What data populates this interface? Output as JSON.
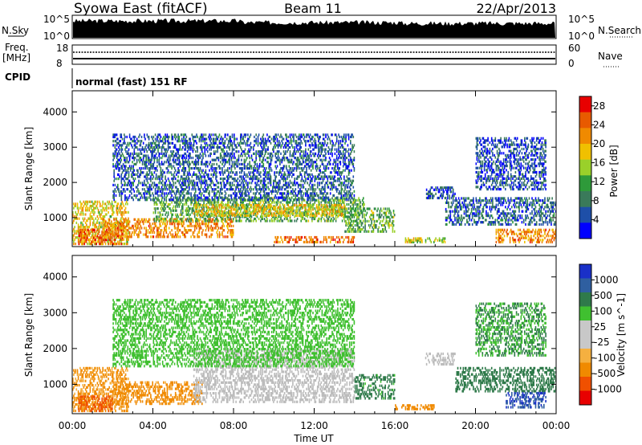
{
  "header": {
    "title": "Syowa East (fitACF)",
    "beam": "Beam 11",
    "date": "22/Apr/2013"
  },
  "top_panels": {
    "nsky_label": "N.Sky",
    "nsearch_label": "N.Search",
    "nsky_ticks": [
      "10^5",
      "10^0"
    ],
    "nsearch_ticks": [
      "10^5",
      "10^0"
    ],
    "freq_label": "Freq.",
    "freq_unit": "[MHz]",
    "freq_ticks": [
      "18",
      "8"
    ],
    "nave_label": "Nave",
    "nave_ticks": [
      "60",
      "0"
    ],
    "cpid_label": "CPID",
    "cpid_text": "normal (fast) 151 RF"
  },
  "colors": {
    "power_scale": [
      "#0000ff",
      "#1e4fa8",
      "#3a7a5a",
      "#2e9a3a",
      "#9ad02a",
      "#f0c000",
      "#f08a00",
      "#e85a00",
      "#e80000"
    ],
    "velocity_scale": [
      "#e80000",
      "#f05000",
      "#f08a00",
      "#f5b040",
      "#c8c8c8",
      "#c8c8c8",
      "#40c030",
      "#2f7a4a",
      "#2f5fa0",
      "#1a30c8"
    ],
    "ground_scatter": "#bcbcbc"
  },
  "chart_data": [
    {
      "type": "heatmap",
      "title": "",
      "xlabel": "",
      "ylabel": "Slant Range [km]",
      "x_range": [
        "00:00",
        "24:00"
      ],
      "y_range": [
        180,
        4600
      ],
      "x_ticks": [
        "00:00",
        "04:00",
        "08:00",
        "12:00",
        "16:00",
        "20:00",
        "00:00"
      ],
      "y_ticks": [
        1000,
        2000,
        3000,
        4000
      ],
      "colorbar": {
        "label": "Power [dB]",
        "range": [
          0,
          30
        ],
        "ticks": [
          4,
          8,
          12,
          16,
          20,
          24,
          28
        ]
      },
      "regions": [
        {
          "t0": 0.0,
          "t1": 2.8,
          "r0": 250,
          "r1": 1500,
          "level": 18
        },
        {
          "t0": 0.3,
          "t1": 2.5,
          "r0": 250,
          "r1": 700,
          "level": 24
        },
        {
          "t0": 1.5,
          "t1": 8.0,
          "r0": 450,
          "r1": 1000,
          "level": 22
        },
        {
          "t0": 4.0,
          "t1": 14.5,
          "r0": 900,
          "r1": 1600,
          "level": 12
        },
        {
          "t0": 6.0,
          "t1": 13.5,
          "r0": 1050,
          "r1": 1400,
          "level": 18
        },
        {
          "t0": 10.0,
          "t1": 14.0,
          "r0": 300,
          "r1": 500,
          "level": 24
        },
        {
          "t0": 2.0,
          "t1": 14.0,
          "r0": 1500,
          "r1": 3400,
          "level": 6
        },
        {
          "t0": 13.5,
          "t1": 16.0,
          "r0": 600,
          "r1": 1300,
          "level": 12
        },
        {
          "t0": 16.5,
          "t1": 18.5,
          "r0": 300,
          "r1": 450,
          "level": 16
        },
        {
          "t0": 17.5,
          "t1": 19.0,
          "r0": 1550,
          "r1": 1900,
          "level": 5
        },
        {
          "t0": 18.5,
          "t1": 24.0,
          "r0": 800,
          "r1": 1600,
          "level": 6
        },
        {
          "t0": 21.0,
          "t1": 24.0,
          "r0": 300,
          "r1": 700,
          "level": 22
        },
        {
          "t0": 20.0,
          "t1": 23.5,
          "r0": 1800,
          "r1": 3300,
          "level": 5
        }
      ]
    },
    {
      "type": "heatmap",
      "title": "",
      "xlabel": "Time UT",
      "ylabel": "Slant Range [km]",
      "x_range": [
        "00:00",
        "24:00"
      ],
      "y_range": [
        180,
        4600
      ],
      "x_ticks": [
        "00:00",
        "04:00",
        "08:00",
        "12:00",
        "16:00",
        "20:00",
        "00:00"
      ],
      "y_ticks": [
        1000,
        2000,
        3000,
        4000
      ],
      "colorbar": {
        "label": "Velocity [m s^-1]",
        "ticks": [
          1000,
          500,
          100,
          25,
          -25,
          -100,
          -500,
          -1000
        ]
      },
      "regions": [
        {
          "t0": 0.0,
          "t1": 2.8,
          "r0": 250,
          "r1": 1500,
          "level": -120
        },
        {
          "t0": 0.3,
          "t1": 2.0,
          "r0": 250,
          "r1": 700,
          "level": -600
        },
        {
          "t0": 2.0,
          "t1": 6.5,
          "r0": 450,
          "r1": 1100,
          "level": -150
        },
        {
          "t0": 6.0,
          "t1": 14.0,
          "r0": 500,
          "r1": 2000,
          "level": 0,
          "ground": true
        },
        {
          "t0": 2.0,
          "t1": 14.0,
          "r0": 1500,
          "r1": 3400,
          "level": 50
        },
        {
          "t0": 14.0,
          "t1": 16.0,
          "r0": 600,
          "r1": 1300,
          "level": 150
        },
        {
          "t0": 16.0,
          "t1": 18.0,
          "r0": 300,
          "r1": 450,
          "level": -200
        },
        {
          "t0": 17.5,
          "t1": 19.0,
          "r0": 1550,
          "r1": 1900,
          "level": 0,
          "ground": true
        },
        {
          "t0": 19.0,
          "t1": 24.0,
          "r0": 800,
          "r1": 1500,
          "level": 300
        },
        {
          "t0": 21.5,
          "t1": 23.5,
          "r0": 350,
          "r1": 800,
          "level": 900
        },
        {
          "t0": 20.0,
          "t1": 23.5,
          "r0": 1800,
          "r1": 3300,
          "level": 100
        }
      ]
    }
  ]
}
